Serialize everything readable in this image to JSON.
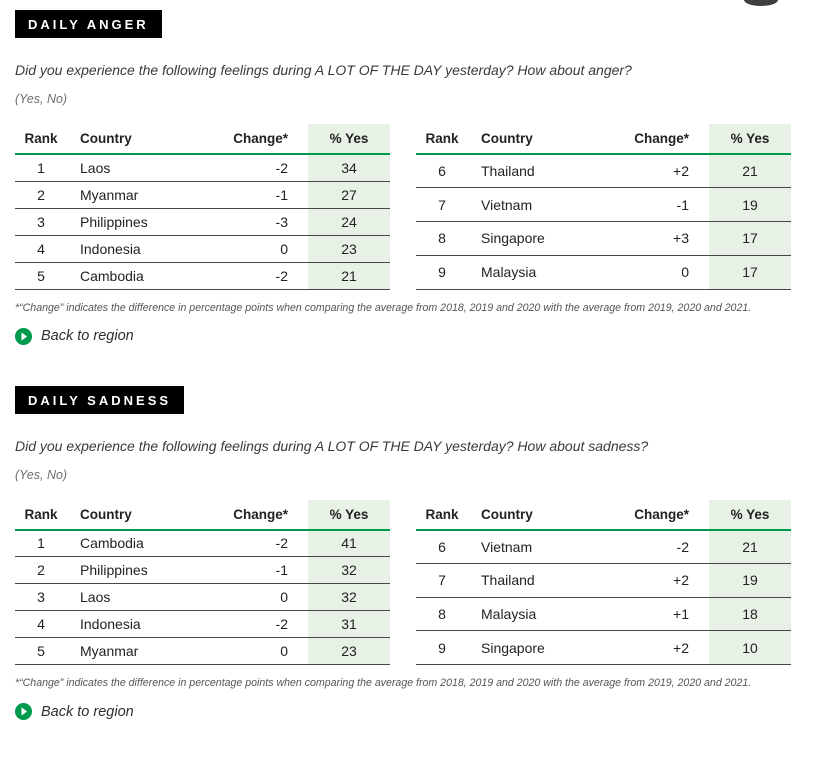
{
  "colors": {
    "accent_green": "#009a4e",
    "shaded_column_green": "#e8f1e6",
    "title_box_black": "#000000",
    "row_divider_gray": "#474747"
  },
  "decorations": {
    "top_right_partial_circle": "partial dark circle cut off at top edge"
  },
  "sections": [
    {
      "title": "DAILY ANGER",
      "question": "Did you experience the following feelings during A LOT OF THE DAY yesterday? How about anger?",
      "scale": "(Yes, No)",
      "columns": {
        "rank": "Rank",
        "country": "Country",
        "change": "Change*",
        "yes": "% Yes"
      },
      "tables": [
        {
          "rows": [
            {
              "rank": "1",
              "country": "Laos",
              "change": "-2",
              "yes": "34"
            },
            {
              "rank": "2",
              "country": "Myanmar",
              "change": "-1",
              "yes": "27"
            },
            {
              "rank": "3",
              "country": "Philippines",
              "change": "-3",
              "yes": "24"
            },
            {
              "rank": "4",
              "country": "Indonesia",
              "change": "0",
              "yes": "23"
            },
            {
              "rank": "5",
              "country": "Cambodia",
              "change": "-2",
              "yes": "21"
            }
          ]
        },
        {
          "rows": [
            {
              "rank": "6",
              "country": "Thailand",
              "change": "+2",
              "yes": "21"
            },
            {
              "rank": "7",
              "country": "Vietnam",
              "change": "-1",
              "yes": "19"
            },
            {
              "rank": "8",
              "country": "Singapore",
              "change": "+3",
              "yes": "17"
            },
            {
              "rank": "9",
              "country": "Malaysia",
              "change": "0",
              "yes": "17"
            }
          ]
        }
      ],
      "footnote": "*“Change” indicates the difference in percentage points when comparing the average from 2018, 2019 and 2020 with the average from 2019, 2020 and 2021.",
      "back_link": "Back to region"
    },
    {
      "title": "DAILY SADNESS",
      "question": "Did you experience the following feelings during A LOT OF THE DAY yesterday? How about sadness?",
      "scale": "(Yes, No)",
      "columns": {
        "rank": "Rank",
        "country": "Country",
        "change": "Change*",
        "yes": "% Yes"
      },
      "tables": [
        {
          "rows": [
            {
              "rank": "1",
              "country": "Cambodia",
              "change": "-2",
              "yes": "41"
            },
            {
              "rank": "2",
              "country": "Philippines",
              "change": "-1",
              "yes": "32"
            },
            {
              "rank": "3",
              "country": "Laos",
              "change": "0",
              "yes": "32"
            },
            {
              "rank": "4",
              "country": "Indonesia",
              "change": "-2",
              "yes": "31"
            },
            {
              "rank": "5",
              "country": "Myanmar",
              "change": "0",
              "yes": "23"
            }
          ]
        },
        {
          "rows": [
            {
              "rank": "6",
              "country": "Vietnam",
              "change": "-2",
              "yes": "21"
            },
            {
              "rank": "7",
              "country": "Thailand",
              "change": "+2",
              "yes": "19"
            },
            {
              "rank": "8",
              "country": "Malaysia",
              "change": "+1",
              "yes": "18"
            },
            {
              "rank": "9",
              "country": "Singapore",
              "change": "+2",
              "yes": "10"
            }
          ]
        }
      ],
      "footnote": "*“Change” indicates the difference in percentage points when comparing the average from 2018, 2019 and 2020 with the average from 2019, 2020 and 2021.",
      "back_link": "Back to region"
    }
  ]
}
